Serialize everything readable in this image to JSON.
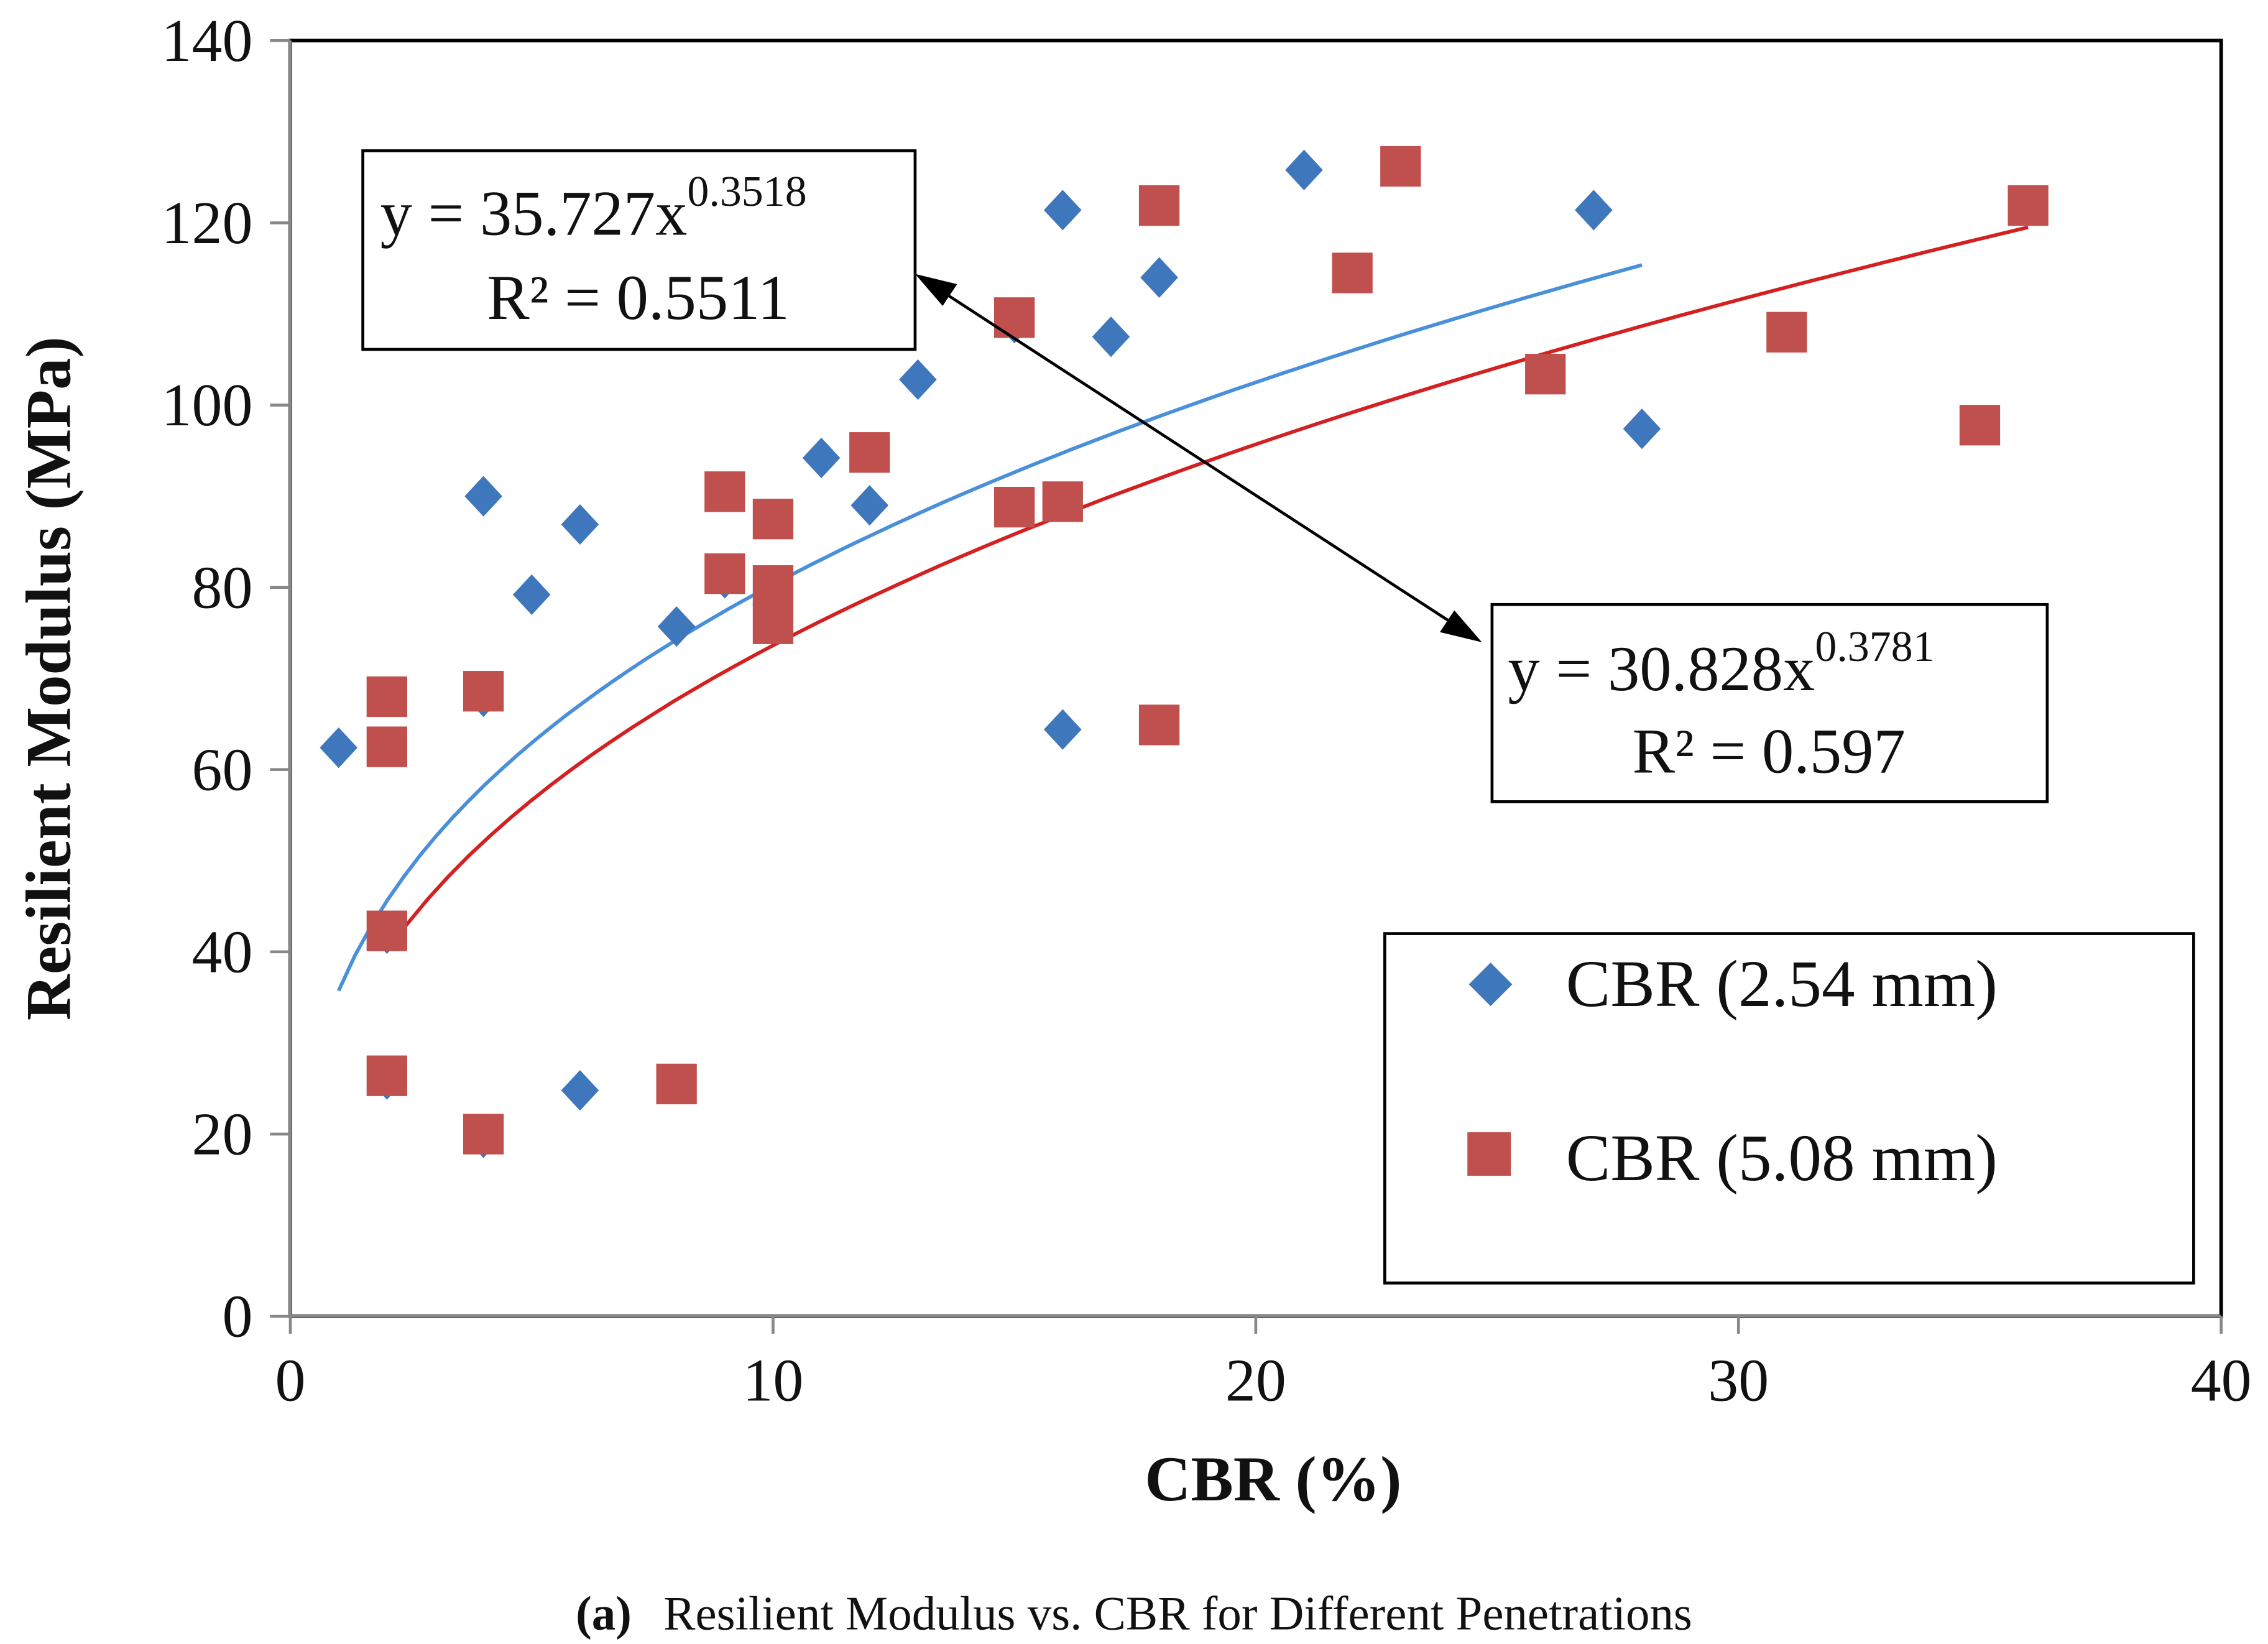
{
  "chart_data": {
    "type": "scatter",
    "xlabel": "CBR (%)",
    "ylabel": "Resilient Modulus (MPa)",
    "xlim": [
      0,
      40
    ],
    "ylim": [
      0,
      140
    ],
    "xticks": [
      "0",
      "10",
      "20",
      "30",
      "40"
    ],
    "yticks": [
      "0",
      "20",
      "40",
      "60",
      "80",
      "100",
      "120",
      "140"
    ],
    "grid": false,
    "legend_position": "bottom-right",
    "series": [
      {
        "name": "CBR (2.54 mm)",
        "marker": "diamond",
        "color": "#3F77BC",
        "points": [
          [
            1,
            62.4
          ],
          [
            2,
            68
          ],
          [
            2,
            42
          ],
          [
            2,
            26
          ],
          [
            4,
            90
          ],
          [
            4,
            68
          ],
          [
            4,
            19.6
          ],
          [
            5,
            79.2
          ],
          [
            6,
            86.9
          ],
          [
            6,
            24.8
          ],
          [
            8,
            75.7
          ],
          [
            9,
            81
          ],
          [
            11,
            94.2
          ],
          [
            12,
            89
          ],
          [
            13,
            102.8
          ],
          [
            15,
            109
          ],
          [
            16,
            121.4
          ],
          [
            16,
            64.4
          ],
          [
            17,
            107.5
          ],
          [
            18,
            114
          ],
          [
            21,
            125.8
          ],
          [
            27,
            121.4
          ],
          [
            28,
            97.4
          ]
        ],
        "trendline": {
          "type": "power",
          "a": 35.727,
          "b": 0.3518,
          "x_range": [
            1,
            28
          ],
          "color": "#4A8FD9",
          "equation_base": "y = 35.727x",
          "equation_exp": "0.3518",
          "r2": "R² = 0.5511"
        }
      },
      {
        "name": "CBR (5.08 mm)",
        "marker": "square",
        "color": "#C0504D",
        "points": [
          [
            2,
            68
          ],
          [
            2,
            62.5
          ],
          [
            2,
            42.3
          ],
          [
            2,
            26.4
          ],
          [
            4,
            68.6
          ],
          [
            4,
            20
          ],
          [
            8,
            25.5
          ],
          [
            9,
            90.5
          ],
          [
            9,
            81.5
          ],
          [
            10,
            87.5
          ],
          [
            10,
            80.2
          ],
          [
            10,
            76
          ],
          [
            12,
            94.8
          ],
          [
            15,
            109.6
          ],
          [
            15,
            88.8
          ],
          [
            16,
            89.4
          ],
          [
            18,
            121.9
          ],
          [
            18,
            64.9
          ],
          [
            22,
            114.5
          ],
          [
            23,
            126.2
          ],
          [
            26,
            103.4
          ],
          [
            31,
            108
          ],
          [
            35,
            97.8
          ],
          [
            36,
            121.9
          ]
        ],
        "trendline": {
          "type": "power",
          "a": 30.828,
          "b": 0.3781,
          "x_range": [
            2,
            36
          ],
          "color": "#D42020",
          "equation_base": "y = 30.828x",
          "equation_exp": "0.3781",
          "r2": "R² = 0.597"
        }
      }
    ],
    "caption_label": "(a)",
    "caption": "Resilient Modulus vs. CBR for Different Penetrations"
  }
}
